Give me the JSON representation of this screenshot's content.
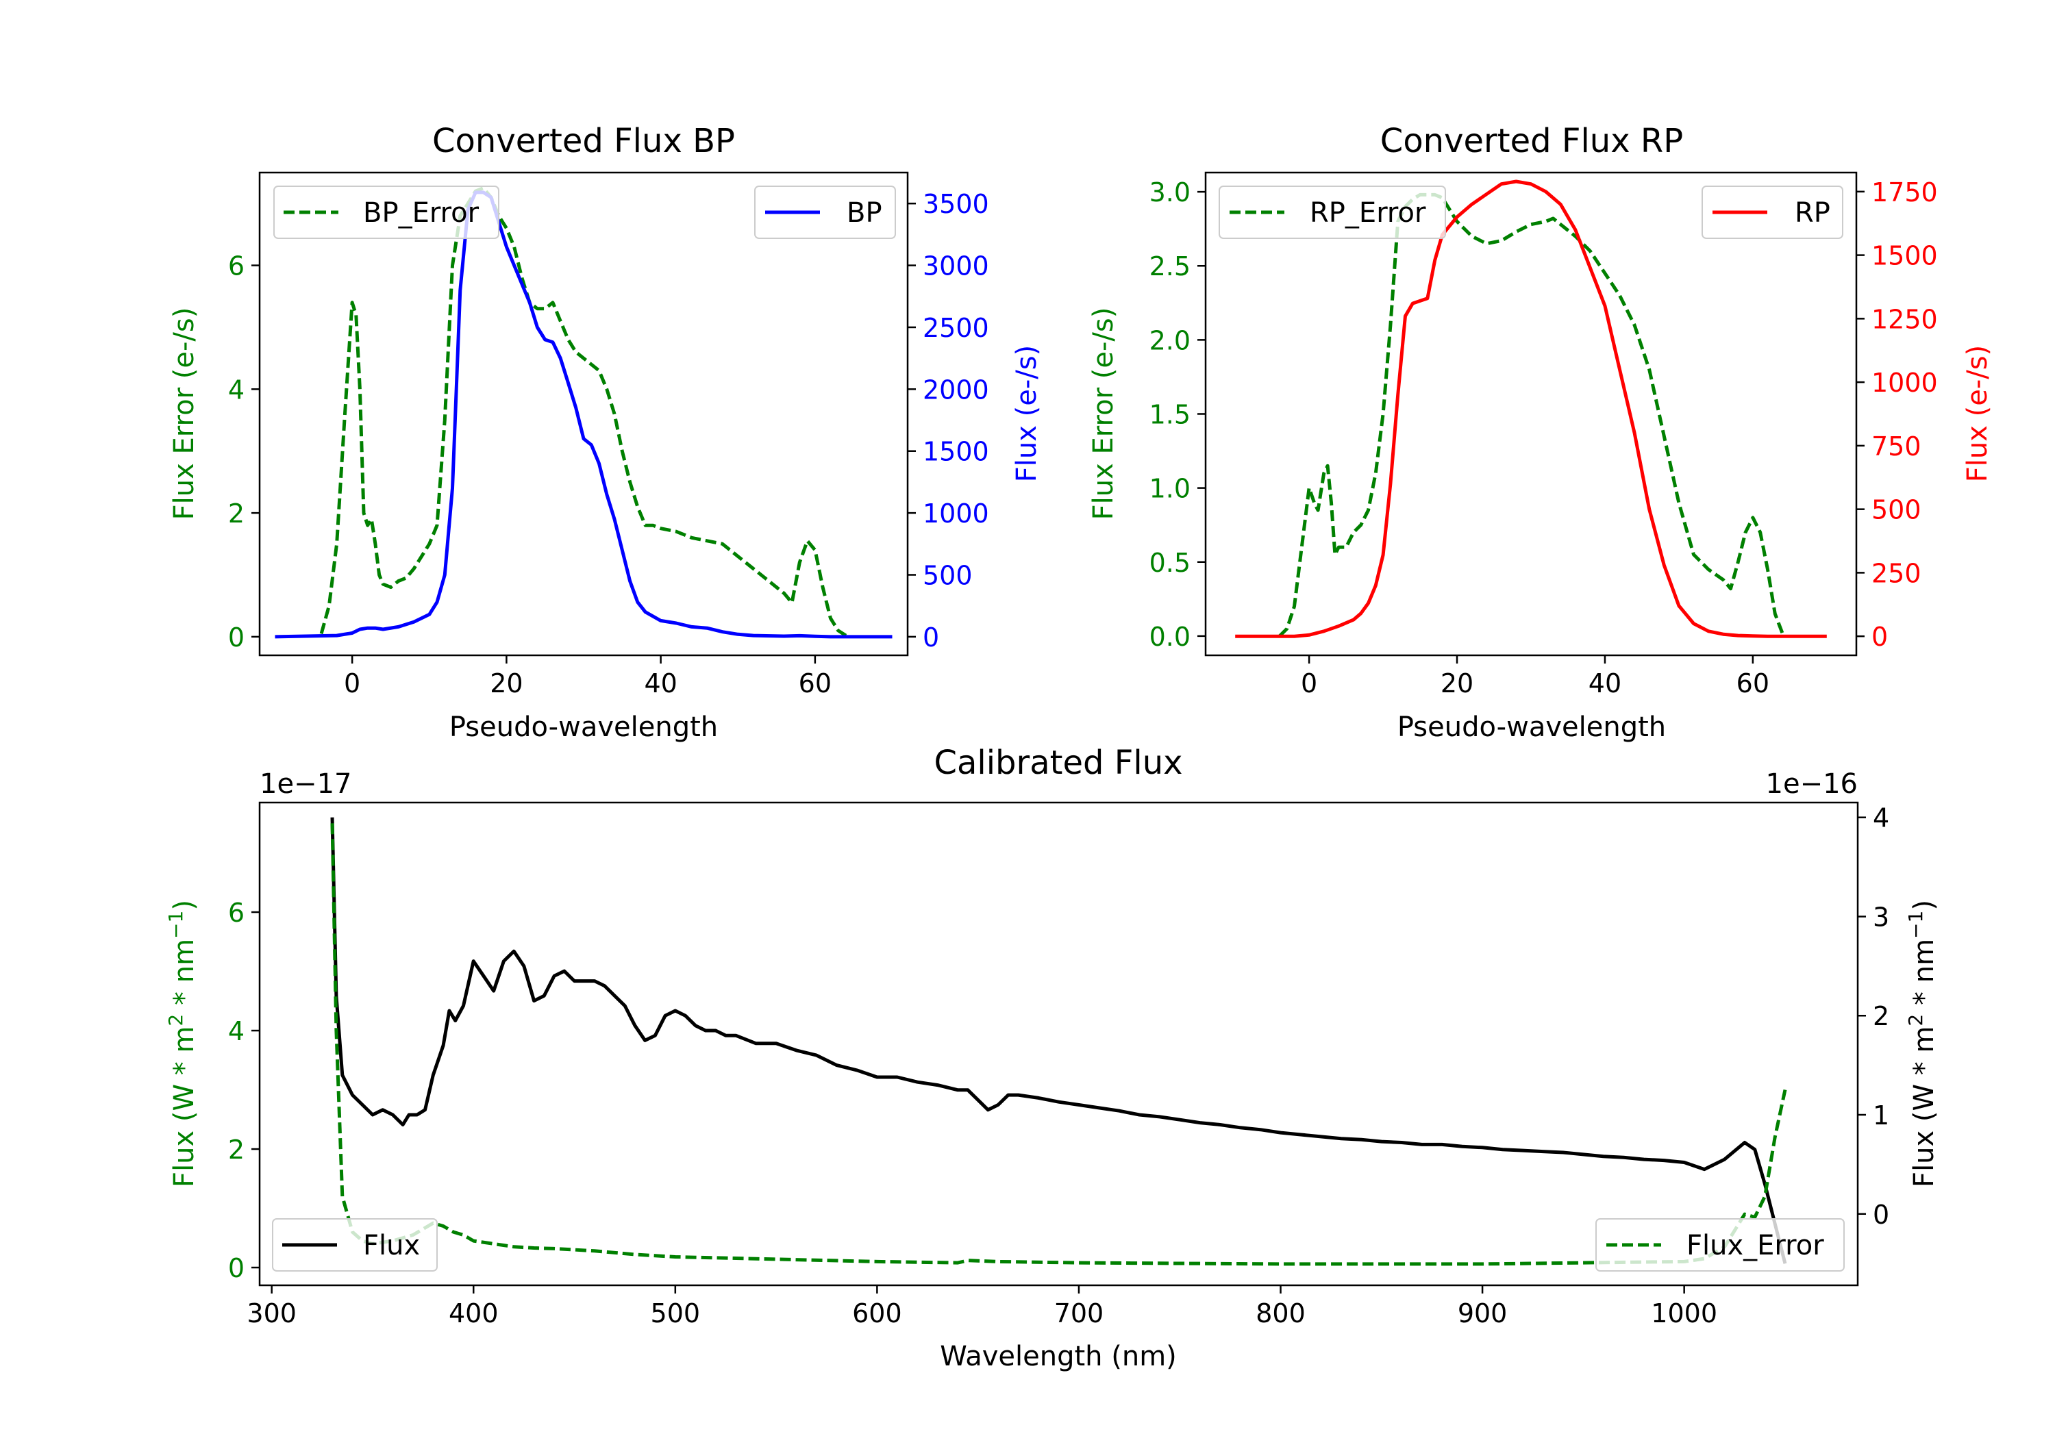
{
  "chart_data": [
    {
      "type": "line",
      "title": "Converted Flux BP",
      "xlabel": "Pseudo-wavelength",
      "ylabel_left": "Flux Error (e-/s)",
      "ylabel_right": "Flux (e-/s)",
      "xlim": [
        -12,
        72
      ],
      "ylim_left": [
        -0.3,
        7.5
      ],
      "ylim_right": [
        -150,
        3750
      ],
      "xticks": [
        0,
        20,
        40,
        60
      ],
      "yticks_left": [
        0,
        2,
        4,
        6
      ],
      "yticks_right": [
        0,
        500,
        1000,
        1500,
        2000,
        2500,
        3000,
        3500
      ],
      "left_color": "#008000",
      "right_color": "#0000ff",
      "series": [
        {
          "name": "BP_Error",
          "axis": "left",
          "style": "dashed",
          "color": "#008000",
          "x": [
            -4,
            -3,
            -2,
            -1,
            0,
            0.5,
            1,
            1.5,
            2,
            2.5,
            3,
            3.5,
            4,
            5,
            6,
            7,
            8,
            9,
            10,
            11,
            12,
            13,
            14,
            15,
            16,
            17,
            18,
            19,
            20,
            21,
            22,
            23,
            24,
            25,
            26,
            27,
            28,
            29,
            30,
            31,
            32,
            33,
            34,
            35,
            36,
            37,
            38,
            39,
            40,
            42,
            44,
            46,
            48,
            50,
            52,
            54,
            56,
            57,
            58,
            59,
            60,
            61,
            62,
            63,
            64
          ],
          "y": [
            0.05,
            0.5,
            1.5,
            3.5,
            5.4,
            5.2,
            4.0,
            2.0,
            1.8,
            1.9,
            1.5,
            1.0,
            0.85,
            0.8,
            0.9,
            0.95,
            1.1,
            1.3,
            1.5,
            1.8,
            3.5,
            6.0,
            6.8,
            7.0,
            7.2,
            7.25,
            7.1,
            6.8,
            6.6,
            6.3,
            5.8,
            5.4,
            5.3,
            5.3,
            5.4,
            5.1,
            4.8,
            4.6,
            4.5,
            4.4,
            4.3,
            4.0,
            3.6,
            3.0,
            2.5,
            2.1,
            1.8,
            1.8,
            1.75,
            1.7,
            1.6,
            1.55,
            1.5,
            1.3,
            1.1,
            0.9,
            0.7,
            0.55,
            1.2,
            1.55,
            1.4,
            0.8,
            0.3,
            0.1,
            0.02
          ]
        },
        {
          "name": "BP",
          "axis": "right",
          "style": "solid",
          "color": "#0000ff",
          "x": [
            -10,
            -6,
            -2,
            0,
            1,
            2,
            3,
            4,
            6,
            8,
            10,
            11,
            12,
            13,
            13.5,
            14,
            15,
            16,
            17,
            18,
            19,
            20,
            21,
            22,
            23,
            24,
            25,
            26,
            27,
            28,
            29,
            30,
            31,
            32,
            33,
            34,
            35,
            36,
            37,
            38,
            40,
            42,
            44,
            46,
            48,
            50,
            52,
            56,
            58,
            60,
            62,
            70
          ],
          "y": [
            0,
            5,
            10,
            30,
            60,
            70,
            70,
            60,
            80,
            120,
            180,
            280,
            500,
            1200,
            2000,
            2800,
            3450,
            3590,
            3590,
            3550,
            3350,
            3150,
            3000,
            2850,
            2700,
            2500,
            2400,
            2380,
            2250,
            2050,
            1850,
            1600,
            1550,
            1400,
            1150,
            950,
            700,
            450,
            280,
            200,
            130,
            110,
            80,
            70,
            40,
            20,
            10,
            5,
            8,
            3,
            0,
            0
          ]
        }
      ]
    },
    {
      "type": "line",
      "title": "Converted Flux RP",
      "xlabel": "Pseudo-wavelength",
      "ylabel_left": "Flux Error (e-/s)",
      "ylabel_right": "Flux (e-/s)",
      "xlim": [
        -14,
        74
      ],
      "ylim_left": [
        -0.13,
        3.13
      ],
      "ylim_right": [
        -75,
        1825
      ],
      "xticks": [
        0,
        20,
        40,
        60
      ],
      "yticks_left": [
        0.0,
        0.5,
        1.0,
        1.5,
        2.0,
        2.5,
        3.0
      ],
      "yticks_right": [
        0,
        250,
        500,
        750,
        1000,
        1250,
        1500,
        1750
      ],
      "left_color": "#008000",
      "right_color": "#ff0000",
      "series": [
        {
          "name": "RP_Error",
          "axis": "left",
          "style": "dashed",
          "color": "#008000",
          "x": [
            -4,
            -3,
            -2,
            -1,
            0,
            0.7,
            1.2,
            2,
            2.5,
            3,
            3.5,
            4,
            5,
            6,
            7,
            8,
            9,
            10,
            11,
            12,
            13,
            14,
            15,
            16,
            17,
            18,
            20,
            22,
            24,
            26,
            28,
            30,
            32,
            33,
            34,
            36,
            38,
            40,
            42,
            44,
            46,
            48,
            50,
            52,
            54,
            56,
            57,
            58,
            59,
            60,
            61,
            62,
            63,
            64
          ],
          "y": [
            0.0,
            0.05,
            0.2,
            0.6,
            1.0,
            0.9,
            0.85,
            1.1,
            1.15,
            0.9,
            0.55,
            0.6,
            0.6,
            0.7,
            0.75,
            0.85,
            1.1,
            1.5,
            2.1,
            2.8,
            2.9,
            2.95,
            2.98,
            2.98,
            2.98,
            2.96,
            2.8,
            2.7,
            2.65,
            2.67,
            2.73,
            2.78,
            2.8,
            2.82,
            2.78,
            2.7,
            2.6,
            2.45,
            2.3,
            2.1,
            1.8,
            1.35,
            0.9,
            0.55,
            0.45,
            0.38,
            0.32,
            0.5,
            0.7,
            0.8,
            0.7,
            0.45,
            0.15,
            0.02
          ]
        },
        {
          "name": "RP",
          "axis": "right",
          "style": "solid",
          "color": "#ff0000",
          "x": [
            -10,
            -2,
            0,
            2,
            4,
            6,
            7,
            8,
            9,
            10,
            11,
            12,
            13,
            14,
            15,
            16,
            17,
            18,
            20,
            22,
            24,
            26,
            28,
            30,
            32,
            34,
            36,
            38,
            40,
            42,
            44,
            46,
            48,
            50,
            52,
            54,
            56,
            58,
            60,
            62,
            64,
            70
          ],
          "y": [
            0,
            0,
            5,
            20,
            40,
            65,
            90,
            130,
            200,
            320,
            600,
            950,
            1260,
            1310,
            1320,
            1330,
            1480,
            1580,
            1650,
            1700,
            1740,
            1780,
            1790,
            1780,
            1750,
            1700,
            1600,
            1450,
            1300,
            1050,
            800,
            500,
            280,
            120,
            50,
            20,
            8,
            3,
            1,
            0,
            0,
            0
          ]
        }
      ]
    },
    {
      "type": "line",
      "title": "Calibrated Flux",
      "xlabel": "Wavelength (nm)",
      "ylabel_left": "Flux (W * m$^2$ * nm$^{-1}$)",
      "ylabel_right": "Flux (W * m$^2$ * nm$^{-1}$)",
      "offset_left": "1e−17",
      "offset_right": "1e−16",
      "xlim": [
        294,
        1086
      ],
      "ylim_left": [
        -0.3,
        7.85
      ],
      "ylim_right": [
        -0.72,
        4.15
      ],
      "xticks": [
        300,
        400,
        500,
        600,
        700,
        800,
        900,
        1000
      ],
      "yticks_left": [
        0,
        2,
        4,
        6
      ],
      "yticks_right": [
        0,
        1,
        2,
        3,
        4
      ],
      "left_color": "#008000",
      "right_color": "#000000",
      "series": [
        {
          "name": "Flux",
          "axis": "right",
          "style": "solid",
          "color": "#000000",
          "x": [
            330,
            332,
            335,
            340,
            345,
            350,
            355,
            360,
            365,
            368,
            372,
            376,
            380,
            385,
            388,
            391,
            395,
            400,
            405,
            410,
            415,
            420,
            425,
            430,
            435,
            440,
            445,
            450,
            455,
            460,
            465,
            470,
            475,
            480,
            485,
            490,
            495,
            500,
            505,
            510,
            515,
            520,
            525,
            530,
            540,
            550,
            560,
            570,
            580,
            590,
            600,
            610,
            620,
            630,
            640,
            645,
            650,
            655,
            660,
            665,
            670,
            680,
            690,
            700,
            710,
            720,
            730,
            740,
            750,
            760,
            770,
            780,
            790,
            800,
            810,
            820,
            830,
            840,
            850,
            860,
            870,
            880,
            890,
            900,
            910,
            920,
            930,
            940,
            950,
            960,
            970,
            980,
            990,
            1000,
            1010,
            1020,
            1030,
            1035,
            1040,
            1045,
            1050
          ],
          "y": [
            4.0,
            2.2,
            1.4,
            1.2,
            1.1,
            1.0,
            1.05,
            1.0,
            0.9,
            1.0,
            1.0,
            1.05,
            1.4,
            1.7,
            2.05,
            1.95,
            2.1,
            2.55,
            2.4,
            2.25,
            2.55,
            2.65,
            2.5,
            2.15,
            2.2,
            2.4,
            2.45,
            2.35,
            2.35,
            2.35,
            2.3,
            2.2,
            2.1,
            1.9,
            1.75,
            1.8,
            2.0,
            2.05,
            2.0,
            1.9,
            1.85,
            1.85,
            1.8,
            1.8,
            1.72,
            1.72,
            1.65,
            1.6,
            1.5,
            1.45,
            1.38,
            1.38,
            1.33,
            1.3,
            1.25,
            1.25,
            1.15,
            1.05,
            1.1,
            1.2,
            1.2,
            1.17,
            1.13,
            1.1,
            1.07,
            1.04,
            1.0,
            0.98,
            0.95,
            0.92,
            0.9,
            0.87,
            0.85,
            0.82,
            0.8,
            0.78,
            0.76,
            0.75,
            0.73,
            0.72,
            0.7,
            0.7,
            0.68,
            0.67,
            0.65,
            0.64,
            0.63,
            0.62,
            0.6,
            0.58,
            0.57,
            0.55,
            0.54,
            0.52,
            0.45,
            0.55,
            0.72,
            0.65,
            0.3,
            -0.1,
            -0.5
          ]
        },
        {
          "name": "Flux_Error",
          "axis": "left",
          "style": "dashed",
          "color": "#008000",
          "x": [
            330,
            332,
            335,
            340,
            345,
            350,
            360,
            370,
            380,
            385,
            390,
            395,
            400,
            410,
            420,
            430,
            440,
            450,
            460,
            480,
            500,
            550,
            600,
            640,
            645,
            660,
            700,
            800,
            900,
            950,
            1000,
            1010,
            1020,
            1030,
            1035,
            1040,
            1045,
            1050
          ],
          "y": [
            7.5,
            4.0,
            1.2,
            0.6,
            0.45,
            0.4,
            0.45,
            0.55,
            0.75,
            0.7,
            0.6,
            0.55,
            0.45,
            0.4,
            0.35,
            0.33,
            0.32,
            0.3,
            0.28,
            0.22,
            0.18,
            0.14,
            0.1,
            0.08,
            0.12,
            0.1,
            0.08,
            0.06,
            0.06,
            0.08,
            0.1,
            0.15,
            0.35,
            0.9,
            0.85,
            1.2,
            2.2,
            3.0
          ]
        }
      ]
    }
  ]
}
